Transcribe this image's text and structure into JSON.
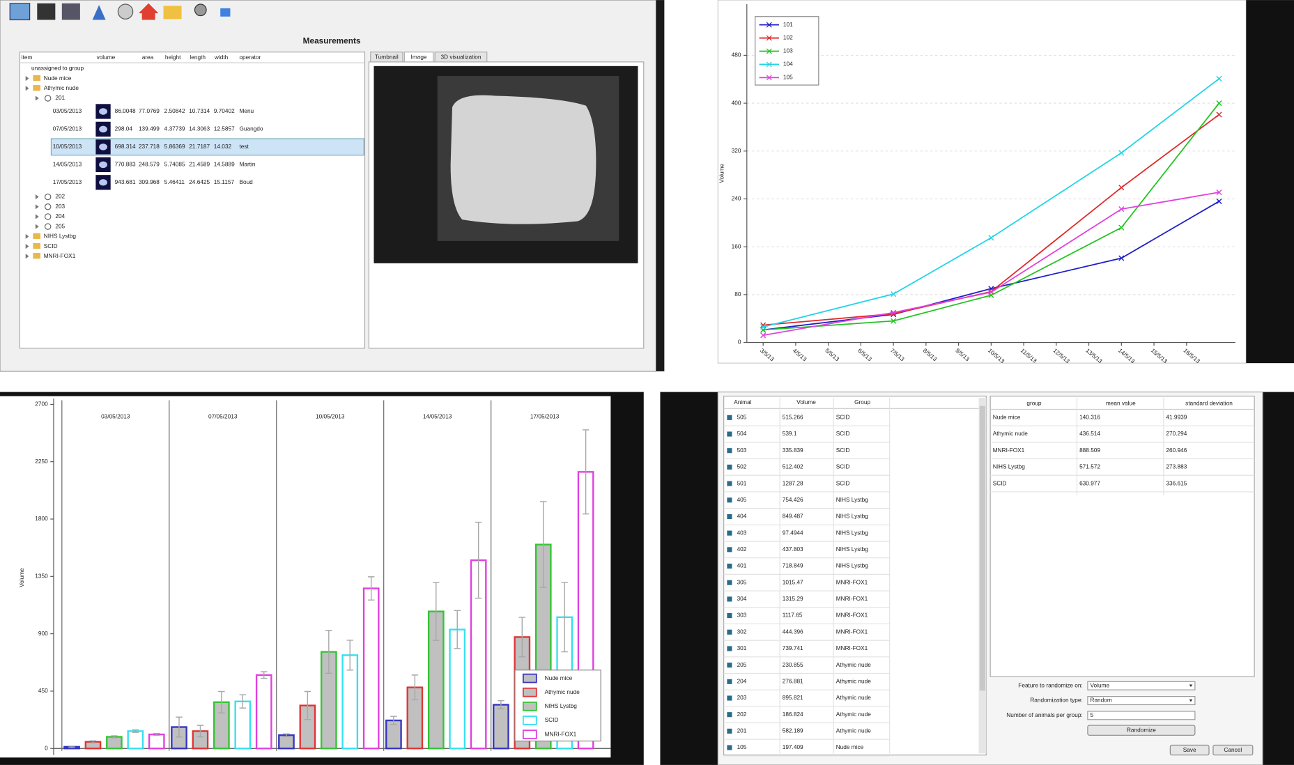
{
  "measurements": {
    "title": "Measurements",
    "columns": [
      "item",
      "volume",
      "area",
      "height",
      "length",
      "width",
      "operator"
    ],
    "tree": [
      {
        "label": "unassigned to group"
      },
      {
        "label": "Nude mice"
      },
      {
        "label": "Athymic nude",
        "children": [
          {
            "label": "201",
            "measurements": [
              [
                "03/05/2013",
                "86.0048",
                "77.0769",
                "2.50842",
                "10.7314",
                "9.70402",
                "Menu"
              ],
              [
                "07/05/2013",
                "298.04",
                "139.499",
                "4.37739",
                "14.3063",
                "12.5857",
                "Guangdo"
              ],
              [
                "10/05/2013",
                "698.314",
                "237.718",
                "5.86369",
                "21.7187",
                "14.032",
                "test"
              ],
              [
                "14/05/2013",
                "770.883",
                "248.579",
                "5.74085",
                "21.4589",
                "14.5889",
                "Martin"
              ],
              [
                "17/05/2013",
                "943.681",
                "309.968",
                "5.46411",
                "24.6425",
                "15.1157",
                "Boud"
              ]
            ]
          },
          {
            "label": "202"
          },
          {
            "label": "203"
          },
          {
            "label": "204"
          },
          {
            "label": "205"
          }
        ]
      },
      {
        "label": "NIHS Lystbg"
      },
      {
        "label": "SCID"
      },
      {
        "label": "MNRI-FOX1"
      }
    ],
    "tabs": [
      "Tumbnail",
      "Image",
      "3D visualization"
    ]
  },
  "chart_data": [
    {
      "type": "line",
      "ylabel": "Volume",
      "x": [
        3,
        7,
        10,
        14,
        17
      ],
      "xlim": [
        2.5,
        17.5
      ],
      "xticks": [
        {
          "value": 3,
          "label": "3/5/13"
        },
        {
          "value": 4,
          "label": "4/5/13"
        },
        {
          "value": 5,
          "label": "5/5/13"
        },
        {
          "value": 6,
          "label": "6/5/13"
        },
        {
          "value": 7,
          "label": "7/5/13"
        },
        {
          "value": 8,
          "label": "8/5/13"
        },
        {
          "value": 9,
          "label": "9/5/13"
        },
        {
          "value": 10,
          "label": "10/5/13"
        },
        {
          "value": 11,
          "label": "11/5/13"
        },
        {
          "value": 12,
          "label": "12/5/13"
        },
        {
          "value": 13,
          "label": "13/5/13"
        },
        {
          "value": 14,
          "label": "14/5/13"
        },
        {
          "value": 15,
          "label": "15/5/13"
        },
        {
          "value": 16,
          "label": "16/5/13"
        }
      ],
      "ylim": [
        0,
        560
      ],
      "yticks": [
        0,
        80,
        160,
        240,
        320,
        400,
        480
      ],
      "grid": true,
      "legend": "top-left",
      "series": [
        {
          "name": "101",
          "color": "#1f1fc8",
          "values": [
            21,
            47,
            90,
            141,
            236
          ]
        },
        {
          "name": "102",
          "color": "#e02828",
          "values": [
            29,
            48,
            85,
            259,
            381
          ]
        },
        {
          "name": "103",
          "color": "#22c422",
          "values": [
            21,
            36,
            79,
            192,
            400
          ]
        },
        {
          "name": "104",
          "color": "#22d4e6",
          "values": [
            26,
            81,
            175,
            317,
            441
          ]
        },
        {
          "name": "105",
          "color": "#e040e0",
          "values": [
            12,
            50,
            84,
            223,
            251
          ]
        }
      ]
    },
    {
      "type": "bar",
      "ylabel": "Volume",
      "categories": [
        "03/05/2013",
        "07/05/2013",
        "10/05/2013",
        "14/05/2013",
        "17/05/2013"
      ],
      "ylim": [
        0,
        2700
      ],
      "yticks": [
        0,
        450,
        900,
        1350,
        1800,
        2250,
        2700
      ],
      "legend": "bottom-right",
      "series": [
        {
          "name": "Nude mice",
          "color": "#3535c0",
          "fill": "#c0c0c0",
          "values": [
            13,
            168,
            104,
            220,
            343
          ],
          "errors": [
            5,
            78,
            10,
            32,
            32
          ]
        },
        {
          "name": "Athymic nude",
          "color": "#e03535",
          "fill": "#c0c0c0",
          "values": [
            52,
            136,
            337,
            479,
            874
          ],
          "errors": [
            8,
            45,
            110,
            97,
            155
          ]
        },
        {
          "name": "NIHS Lystbg",
          "color": "#35c435",
          "fill": "#c0c0c0",
          "values": [
            91,
            363,
            758,
            1075,
            1600
          ],
          "errors": [
            8,
            84,
            168,
            227,
            337
          ]
        },
        {
          "name": "SCID",
          "color": "#35e0f0",
          "fill": "#ffffff",
          "values": [
            136,
            369,
            732,
            933,
            1030
          ],
          "errors": [
            10,
            52,
            117,
            149,
            272
          ]
        },
        {
          "name": "MNRI-FOX1",
          "color": "#e040e0",
          "fill": "#ffffff",
          "values": [
            110,
            576,
            1256,
            1477,
            2170
          ],
          "errors": [
            8,
            26,
            91,
            298,
            330
          ]
        }
      ]
    }
  ],
  "randomization": {
    "animals": {
      "columns": [
        "Animal",
        "Volume",
        "Group"
      ],
      "rows": [
        [
          "505",
          "515.266",
          "SCID"
        ],
        [
          "504",
          "539.1",
          "SCID"
        ],
        [
          "503",
          "335.839",
          "SCID"
        ],
        [
          "502",
          "512.402",
          "SCID"
        ],
        [
          "501",
          "1287.28",
          "SCID"
        ],
        [
          "405",
          "754.426",
          "NIHS Lystbg"
        ],
        [
          "404",
          "849.487",
          "NIHS Lystbg"
        ],
        [
          "403",
          "97.4944",
          "NIHS Lystbg"
        ],
        [
          "402",
          "437.803",
          "NIHS Lystbg"
        ],
        [
          "401",
          "718.849",
          "NIHS Lystbg"
        ],
        [
          "305",
          "1015.47",
          "MNRI-FOX1"
        ],
        [
          "304",
          "1315.29",
          "MNRI-FOX1"
        ],
        [
          "303",
          "1117.65",
          "MNRI-FOX1"
        ],
        [
          "302",
          "444.396",
          "MNRI-FOX1"
        ],
        [
          "301",
          "739.741",
          "MNRI-FOX1"
        ],
        [
          "205",
          "230.855",
          "Athymic nude"
        ],
        [
          "204",
          "276.881",
          "Athymic nude"
        ],
        [
          "203",
          "895.821",
          "Athymic nude"
        ],
        [
          "202",
          "186.824",
          "Athymic nude"
        ],
        [
          "201",
          "582.189",
          "Athymic nude"
        ],
        [
          "105",
          "197.409",
          "Nude mice"
        ]
      ]
    },
    "groups": {
      "columns": [
        "group",
        "mean value",
        "standard deviation"
      ],
      "rows": [
        [
          "Nude mice",
          "140.316",
          "41.9939"
        ],
        [
          "Athymic nude",
          "436.514",
          "270.294"
        ],
        [
          "MNRI-FOX1",
          "888.509",
          "260.946"
        ],
        [
          "NIHS Lystbg",
          "571.572",
          "273.883"
        ],
        [
          "SCID",
          "630.977",
          "336.615"
        ]
      ]
    },
    "controls": [
      {
        "label": "Feature to randomize on:",
        "value": "Volume"
      },
      {
        "label": "Randomization type:",
        "value": "Random"
      },
      {
        "label": "Number of animals per group:",
        "value": "5"
      }
    ],
    "buttons": [
      "Randomize",
      "Save",
      "Cancel"
    ]
  }
}
